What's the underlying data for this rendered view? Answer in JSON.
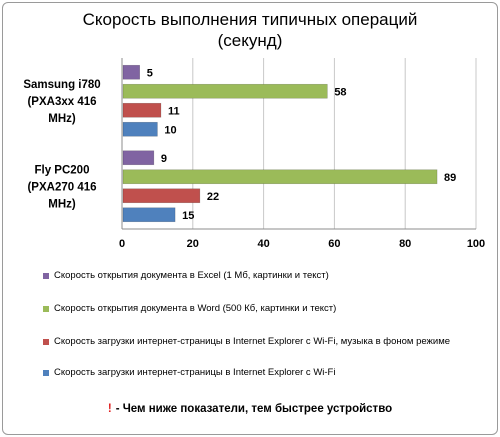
{
  "chart_data": {
    "type": "bar",
    "orientation": "horizontal",
    "title_lines": [
      "Скорость выполнения типичных операций",
      "(секунд)"
    ],
    "categories": [
      {
        "lines": [
          "Samsung i780",
          "(PXA3xx 416",
          "MHz)"
        ]
      },
      {
        "lines": [
          "Fly PC200",
          "(PXA270 416",
          "MHz)"
        ]
      }
    ],
    "series": [
      {
        "name": "Скорость открытия документа  в Excel (1 Мб, картинки и текст)",
        "color": "#8064a2",
        "values": [
          5,
          9
        ]
      },
      {
        "name": "Скорость открытия документа  в Word (500 Кб, картинки и текст)",
        "color": "#9bbb59",
        "values": [
          58,
          89
        ]
      },
      {
        "name": "Скорость загрузки интернет-страницы  в Internet  Explorer с Wi-Fi, музыка в фоном режиме",
        "color": "#c0504d",
        "values": [
          11,
          22
        ]
      },
      {
        "name": "Скорость загрузки интернет-страницы  в Internet  Explorer с Wi-Fi",
        "color": "#4f81bd",
        "values": [
          10,
          15
        ]
      }
    ],
    "xlim": [
      0,
      100
    ],
    "xticks": [
      0,
      20,
      40,
      60,
      80,
      100
    ],
    "grid": true,
    "legend_position": "bottom"
  },
  "note": {
    "mark": "!",
    "text": "- Чем ниже показатели, тем быстрее устройство"
  }
}
